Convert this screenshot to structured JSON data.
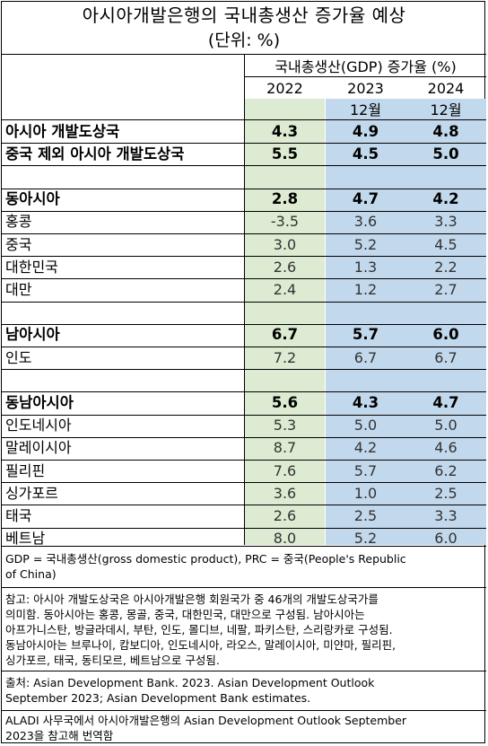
{
  "title": "아시아개발은행의 국내총생산 증가율 예상",
  "subtitle": "(단위: %)",
  "table_header": {
    "group_label": "국내총생산(GDP) 증가율 (%)",
    "years": [
      "2022",
      "2023",
      "2024"
    ],
    "sublabels": [
      "",
      "12월",
      "12월"
    ]
  },
  "chart_data": {
    "type": "table",
    "title": "아시아개발은행의 국내총생산 증가율 예상",
    "unit": "(단위: %)",
    "columns": [
      "2022",
      "2023 12월",
      "2024 12월"
    ],
    "rows": [
      {
        "label": "아시아 개발도상국",
        "values": [
          "4.3",
          "4.9",
          "4.8"
        ],
        "bold": true,
        "group_start": false
      },
      {
        "label": "중국 제외 아시아 개발도상국",
        "values": [
          "5.5",
          "4.5",
          "5.0"
        ],
        "bold": true,
        "group_start": false
      },
      {
        "label": "",
        "values": [
          "",
          "",
          ""
        ],
        "bold": false,
        "spacer": true
      },
      {
        "label": "동아시아",
        "values": [
          "2.8",
          "4.7",
          "4.2"
        ],
        "bold": true
      },
      {
        "label": "홍콩",
        "values": [
          "-3.5",
          "3.6",
          "3.3"
        ],
        "bold": false
      },
      {
        "label": "중국",
        "values": [
          "3.0",
          "5.2",
          "4.5"
        ],
        "bold": false
      },
      {
        "label": "대한민국",
        "values": [
          "2.6",
          "1.3",
          "2.2"
        ],
        "bold": false
      },
      {
        "label": "대만",
        "values": [
          "2.4",
          "1.2",
          "2.7"
        ],
        "bold": false
      },
      {
        "label": "",
        "values": [
          "",
          "",
          ""
        ],
        "bold": false,
        "spacer": true
      },
      {
        "label": "남아시아",
        "values": [
          "6.7",
          "5.7",
          "6.0"
        ],
        "bold": true
      },
      {
        "label": "인도",
        "values": [
          "7.2",
          "6.7",
          "6.7"
        ],
        "bold": false
      },
      {
        "label": "",
        "values": [
          "",
          "",
          ""
        ],
        "bold": false,
        "spacer": true
      },
      {
        "label": "동남아시아",
        "values": [
          "5.6",
          "4.3",
          "4.7"
        ],
        "bold": true
      },
      {
        "label": "인도네시아",
        "values": [
          "5.3",
          "5.0",
          "5.0"
        ],
        "bold": false
      },
      {
        "label": "말레이시아",
        "values": [
          "8.7",
          "4.2",
          "4.6"
        ],
        "bold": false
      },
      {
        "label": "필리핀",
        "values": [
          "7.6",
          "5.7",
          "6.2"
        ],
        "bold": false
      },
      {
        "label": "싱가포르",
        "values": [
          "3.6",
          "1.0",
          "2.5"
        ],
        "bold": false
      },
      {
        "label": "태국",
        "values": [
          "2.6",
          "2.5",
          "3.3"
        ],
        "bold": false
      },
      {
        "label": "베트남",
        "values": [
          "8.0",
          "5.2",
          "6.0"
        ],
        "bold": false
      }
    ]
  },
  "colors": {
    "col_2022_bg": "#dcebd2",
    "col_forecast_bg": "#c2d8ec"
  },
  "footnotes": {
    "abbrev_1": "GDP = 국내총생산(gross domestic product), PRC = 중국(People's Republic",
    "abbrev_2": "of China)",
    "note_1": "참고: 아시아 개발도상국은 아시아개발은행 회원국가 중 46개의 개발도상국가를",
    "note_2": "의미함. 동아시아는 홍콩, 몽골, 중국, 대한민국, 대만으로 구성됨. 남아시아는",
    "note_3": "아프가니스탄, 방글라데시, 부탄, 인도, 몰디브, 네팔, 파키스탄, 스리랑카로 구성됨.",
    "note_4": "동남아시아는 브루나이, 캄보디아, 인도네시아, 라오스, 말레이시아, 미얀마, 필리핀,",
    "note_5": "싱가포르, 태국, 동티모르, 베트남으로 구성됨.",
    "source_1": "출처: Asian Development Bank. 2023. Asian Development Outlook",
    "source_2": "September 2023; Asian Development Bank estimates.",
    "credit_1": "ALADI 사무국에서 아시아개발은행의 Asian Development Outlook September",
    "credit_2": "2023을 참고해 번역함"
  }
}
